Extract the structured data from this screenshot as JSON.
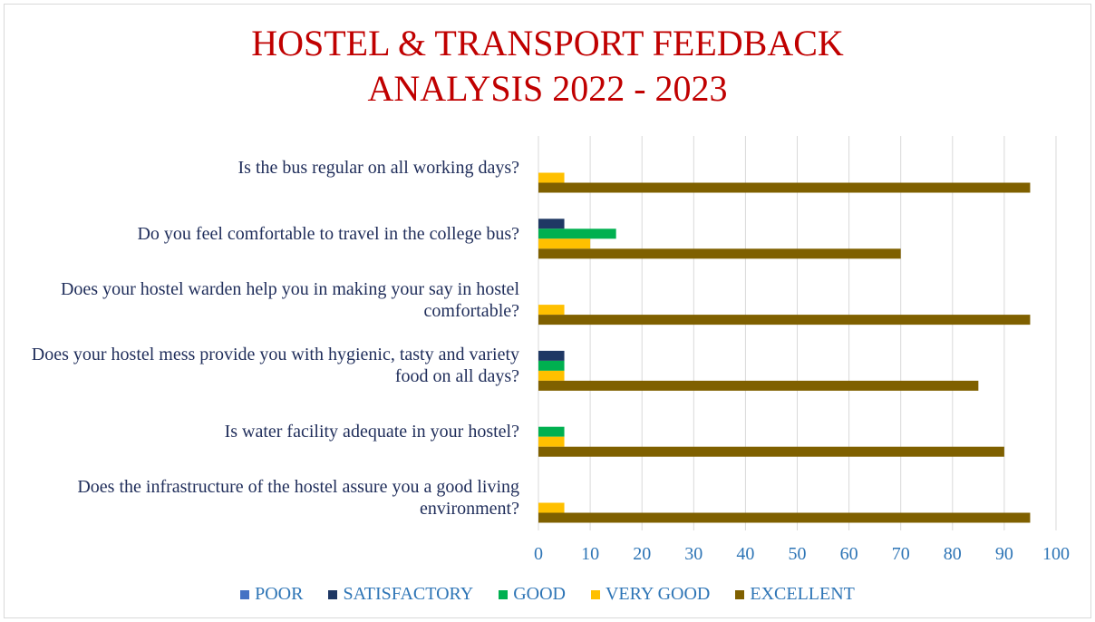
{
  "chart_data": {
    "type": "hbar",
    "title": [
      "HOSTEL & TRANSPORT FEEDBACK",
      "ANALYSIS 2022 - 2023"
    ],
    "categories": [
      "Is the bus regular on all working days?",
      "Do you feel comfortable to travel in the college bus?",
      "Does your hostel warden help you in making your say in hostel comfortable?",
      "Does your hostel mess provide you with hygienic, tasty and variety food on all days?",
      "Is water facility adequate in your hostel?",
      "Does the infrastructure of the hostel assure you a good living environment?"
    ],
    "series": [
      {
        "name": "POOR",
        "color": "#4472c4",
        "values": [
          0,
          0,
          0,
          0,
          0,
          0
        ]
      },
      {
        "name": "SATISFACTORY",
        "color": "#1f3864",
        "values": [
          0,
          5,
          0,
          5,
          0,
          0
        ]
      },
      {
        "name": "GOOD",
        "color": "#00b050",
        "values": [
          0,
          15,
          0,
          5,
          5,
          0
        ]
      },
      {
        "name": "VERY GOOD",
        "color": "#ffc000",
        "values": [
          5,
          10,
          5,
          5,
          5,
          5
        ]
      },
      {
        "name": "EXCELLENT",
        "color": "#7f6000",
        "values": [
          95,
          70,
          95,
          85,
          90,
          95
        ]
      }
    ],
    "xlim": [
      0,
      100
    ],
    "xticks": [
      0,
      10,
      20,
      30,
      40,
      50,
      60,
      70,
      80,
      90,
      100
    ],
    "grid": true,
    "legend": "bottom"
  }
}
